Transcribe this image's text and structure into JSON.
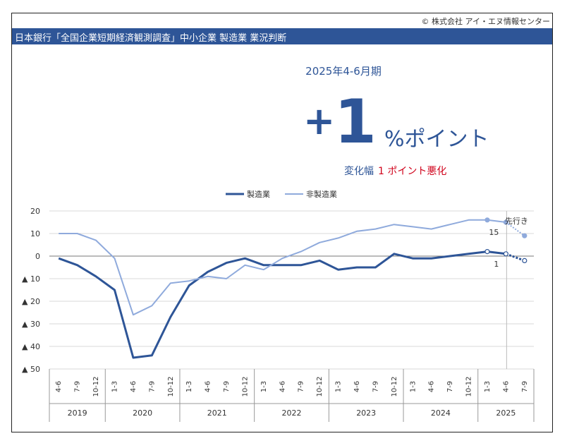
{
  "header": {
    "copyright": "© 株式会社 アイ・エヌ情報センター",
    "title": "日本銀行「全国企業短期経済観測調査」中小企業 製造業 業況判断"
  },
  "summary": {
    "period": "2025年4-6月期",
    "sign": "+",
    "value": "1",
    "unit": "%ポイント",
    "change_label": "変化幅",
    "change_value": "1 ポイント悪化"
  },
  "colors": {
    "manufacturing": "#2e5597",
    "non_manufacturing": "#8faadc",
    "accent": "#d0021b"
  },
  "chart_data": {
    "type": "line",
    "title": "",
    "xlabel": "",
    "ylabel": "",
    "ylim": [
      -50,
      20
    ],
    "yticks": [
      {
        "value": 20,
        "label": "20"
      },
      {
        "value": 10,
        "label": "10"
      },
      {
        "value": 0,
        "label": "0"
      },
      {
        "value": -10,
        "label": "▲ 10"
      },
      {
        "value": -20,
        "label": "▲ 20"
      },
      {
        "value": -30,
        "label": "▲ 30"
      },
      {
        "value": -40,
        "label": "▲ 40"
      },
      {
        "value": -50,
        "label": "▲ 50"
      }
    ],
    "grid": true,
    "legend_position": "top",
    "categories": [
      "4-6",
      "7-9",
      "10-12",
      "1-3",
      "4-6",
      "7-9",
      "10-12",
      "1-3",
      "4-6",
      "7-9",
      "10-12",
      "1-3",
      "4-6",
      "7-9",
      "10-12",
      "1-3",
      "4-6",
      "7-9",
      "10-12",
      "1-3",
      "4-6",
      "7-9",
      "10-12",
      "1-3",
      "4-6",
      "7-9"
    ],
    "years": [
      {
        "label": "2019",
        "count": 3
      },
      {
        "label": "2020",
        "count": 4
      },
      {
        "label": "2021",
        "count": 4
      },
      {
        "label": "2022",
        "count": 4
      },
      {
        "label": "2023",
        "count": 4
      },
      {
        "label": "2024",
        "count": 4
      },
      {
        "label": "2025",
        "count": 3
      }
    ],
    "forecast_label": "先行き",
    "series": [
      {
        "name": "製造業",
        "values": [
          -1,
          -4,
          -9,
          -15,
          -45,
          -44,
          -27,
          -13,
          -7,
          -3,
          -1,
          -4,
          -4,
          -4,
          -2,
          -6,
          -5,
          -5,
          1,
          -1,
          -1,
          0,
          1,
          2,
          1,
          -2
        ],
        "forecast_from_index": 24,
        "annotation": {
          "index": 24,
          "text": "1"
        }
      },
      {
        "name": "非製造業",
        "values": [
          10,
          10,
          7,
          -1,
          -26,
          -22,
          -12,
          -11,
          -9,
          -10,
          -4,
          -6,
          -1,
          2,
          6,
          8,
          11,
          12,
          14,
          13,
          12,
          14,
          16,
          16,
          15,
          9
        ],
        "forecast_from_index": 24,
        "annotation": {
          "index": 24,
          "text": "15"
        }
      }
    ]
  }
}
